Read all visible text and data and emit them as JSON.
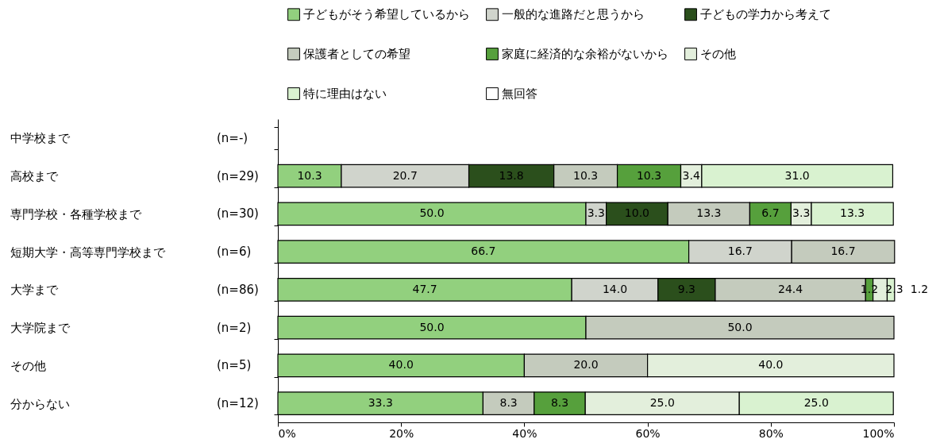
{
  "chart_data": {
    "type": "bar",
    "orientation": "horizontal",
    "stacked": true,
    "legend": "top",
    "grid": false,
    "categories": [
      "中学校まで",
      "高校まで",
      "専門学校・各種学校まで",
      "短期大学・高等専門学校まで",
      "大学まで",
      "大学院まで",
      "その他",
      "分からない"
    ],
    "annotations": [
      "(n=-)",
      "(n=29)",
      "(n=30)",
      "(n=6)",
      "(n=86)",
      "(n=2)",
      "(n=5)",
      "(n=12)"
    ],
    "xlim": [
      0,
      100
    ],
    "xticks": [
      {
        "value": 0,
        "label": "0%"
      },
      {
        "value": 20,
        "label": "20%"
      },
      {
        "value": 40,
        "label": "40%"
      },
      {
        "value": 60,
        "label": "60%"
      },
      {
        "value": 80,
        "label": "80%"
      },
      {
        "value": 100,
        "label": "100%"
      }
    ],
    "series": [
      {
        "name": "子どもがそう希望しているから",
        "color": "#92d07e",
        "values": [
          null,
          10.3,
          50.0,
          66.7,
          47.7,
          50.0,
          40.0,
          33.3
        ],
        "value_labels": [
          null,
          "10.3",
          "50.0",
          "66.7",
          "47.7",
          "50.0",
          "40.0",
          "33.3"
        ]
      },
      {
        "name": "一般的な進路だと思うから",
        "color": "#d0d4cc",
        "values": [
          null,
          20.7,
          3.3,
          16.7,
          14.0,
          null,
          null,
          null
        ],
        "value_labels": [
          null,
          "20.7",
          "3.3",
          "16.7",
          "14.0",
          null,
          null,
          null
        ]
      },
      {
        "name": "子どもの学力から考えて",
        "color": "#2b4f1c",
        "values": [
          null,
          13.8,
          10.0,
          null,
          9.3,
          null,
          null,
          null
        ],
        "value_labels": [
          null,
          "13.8",
          "10.0",
          null,
          "9.3",
          null,
          null,
          null
        ]
      },
      {
        "name": "保護者としての希望",
        "color": "#c4cbbd",
        "values": [
          null,
          10.3,
          13.3,
          16.7,
          24.4,
          50.0,
          20.0,
          8.3
        ],
        "value_labels": [
          null,
          "10.3",
          "13.3",
          "16.7",
          "24.4",
          "50.0",
          "20.0",
          "8.3"
        ]
      },
      {
        "name": "家庭に経済的な余裕がないから",
        "color": "#56a03c",
        "values": [
          null,
          10.3,
          6.7,
          null,
          1.2,
          null,
          null,
          8.3
        ],
        "value_labels": [
          null,
          "10.3",
          "6.7",
          null,
          "1.2",
          null,
          null,
          "8.3"
        ]
      },
      {
        "name": "その他",
        "color": "#e3efdc",
        "values": [
          null,
          3.4,
          3.3,
          null,
          2.3,
          null,
          40.0,
          25.0
        ],
        "value_labels": [
          null,
          "3.4",
          "3.3",
          null,
          "2.3",
          null,
          "40.0",
          "25.0"
        ]
      },
      {
        "name": "特に理由はない",
        "color": "#d9f2d0",
        "values": [
          null,
          31.0,
          13.3,
          null,
          1.2,
          null,
          null,
          25.0
        ],
        "value_labels": [
          null,
          "31.0",
          "13.3",
          null,
          "1.2",
          null,
          null,
          "25.0"
        ]
      },
      {
        "name": "無回答",
        "color": "#ffffff",
        "values": [
          null,
          null,
          null,
          null,
          null,
          null,
          null,
          null
        ],
        "value_labels": [
          null,
          null,
          null,
          null,
          null,
          null,
          null,
          null
        ]
      }
    ]
  }
}
